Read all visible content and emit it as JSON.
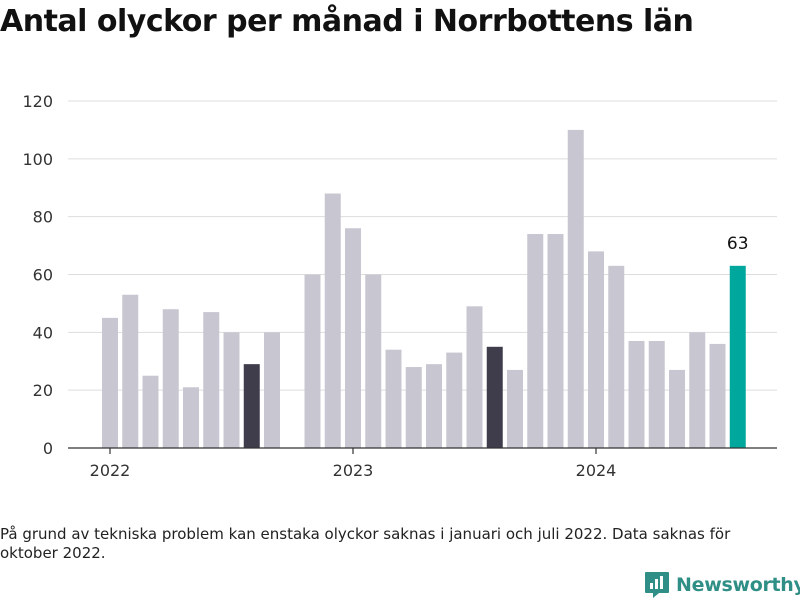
{
  "title": "Antal olyckor per månad i Norrbottens län",
  "footnote": "På grund av tekniska problem kan enstaka olyckor saknas i januari och juli 2022. Data saknas för oktober 2022.",
  "brand": {
    "name": "Newsworthy",
    "icon": "newsworthy-logo-icon"
  },
  "colors": {
    "default": "#c8c7d1",
    "highlight": "#3f3d4c",
    "latest": "#00a79d",
    "grid": "#dddddd",
    "axis": "#333333"
  },
  "chart_data": {
    "type": "bar",
    "title": "Antal olyckor per månad i Norrbottens län",
    "xlabel": "",
    "ylabel": "",
    "ylim": [
      0,
      120
    ],
    "yticks": [
      0,
      20,
      40,
      60,
      80,
      100,
      120
    ],
    "grid": true,
    "year_labels": [
      {
        "label": "2022",
        "at": "2022-01"
      },
      {
        "label": "2023",
        "at": "2023-01"
      },
      {
        "label": "2024",
        "at": "2024-01"
      }
    ],
    "categories": [
      "2022-01",
      "2022-02",
      "2022-03",
      "2022-04",
      "2022-05",
      "2022-06",
      "2022-07",
      "2022-08",
      "2022-09",
      "2022-10",
      "2022-11",
      "2022-12",
      "2023-01",
      "2023-02",
      "2023-03",
      "2023-04",
      "2023-05",
      "2023-06",
      "2023-07",
      "2023-08",
      "2023-09",
      "2023-10",
      "2023-11",
      "2023-12",
      "2024-01",
      "2024-02",
      "2024-03",
      "2024-04",
      "2024-05",
      "2024-06",
      "2024-07",
      "2024-08"
    ],
    "values": [
      45,
      53,
      25,
      48,
      21,
      47,
      40,
      29,
      40,
      null,
      60,
      88,
      76,
      60,
      34,
      28,
      29,
      33,
      49,
      35,
      27,
      74,
      74,
      110,
      68,
      63,
      37,
      37,
      27,
      40,
      36,
      63
    ],
    "highlight": [
      "2022-08",
      "2023-08"
    ],
    "latest": "2024-08",
    "latest_label": "63"
  }
}
